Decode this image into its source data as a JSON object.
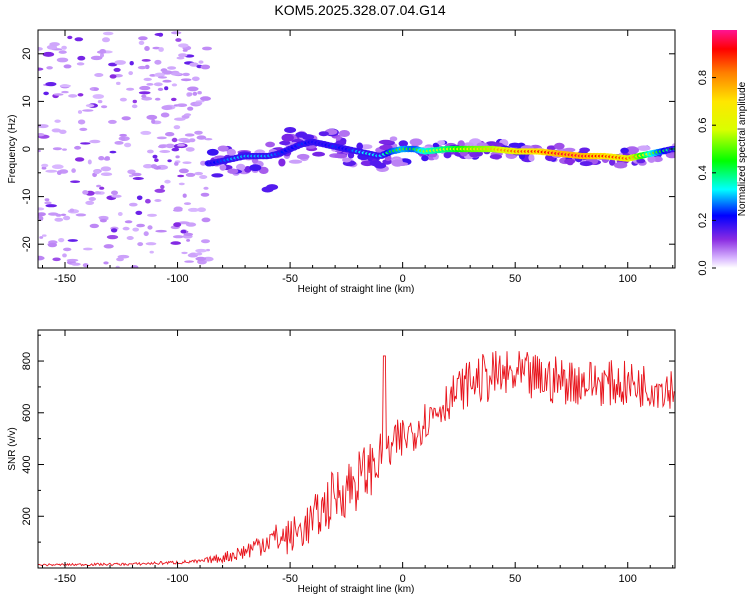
{
  "title": "KOM5.2025.328.07.04.G14",
  "chart_data": [
    {
      "type": "heatmap",
      "title": "KOM5.2025.328.07.04.G14",
      "xlabel": "Height of straight line (km)",
      "ylabel": "Frequency (Hz)",
      "xlim": [
        -162,
        121
      ],
      "ylim": [
        -25,
        25
      ],
      "xticks": [
        -150,
        -100,
        -50,
        0,
        50,
        100
      ],
      "yticks": [
        -20,
        -10,
        0,
        10,
        20
      ],
      "colorbar": {
        "label": "Normalized spectral amplitude",
        "range": [
          0,
          1
        ],
        "ticks": [
          "0.0",
          "0.2",
          "0.4",
          "0.6",
          "0.8"
        ]
      },
      "ridge": {
        "x": [
          -85,
          -80,
          -75,
          -70,
          -65,
          -60,
          -55,
          -50,
          -45,
          -40,
          -35,
          -30,
          -25,
          -20,
          -15,
          -10,
          -5,
          0,
          5,
          10,
          20,
          30,
          40,
          50,
          60,
          70,
          80,
          90,
          100,
          110,
          120
        ],
        "y": [
          -3,
          -2.5,
          -2,
          -1.5,
          -1.5,
          -1.5,
          -1,
          0,
          1,
          1.5,
          1,
          0.5,
          0,
          -0.5,
          -1,
          -1.5,
          -0.5,
          0,
          0,
          -0.5,
          0,
          0,
          0,
          -0.5,
          -0.5,
          -1,
          -1.5,
          -1.5,
          -2,
          -1,
          0
        ],
        "amplitude": [
          0.2,
          0.25,
          0.3,
          0.3,
          0.3,
          0.3,
          0.25,
          0.2,
          0.25,
          0.2,
          0.2,
          0.25,
          0.2,
          0.3,
          0.35,
          0.3,
          0.45,
          0.5,
          0.45,
          0.55,
          0.6,
          0.7,
          0.75,
          0.85,
          0.9,
          0.95,
          0.95,
          0.9,
          0.85,
          0.55,
          0.35
        ]
      }
    },
    {
      "type": "line",
      "xlabel": "Height of straight line (km)",
      "ylabel": "SNR (v/v)",
      "xlim": [
        -162,
        121
      ],
      "ylim": [
        0,
        920
      ],
      "xticks": [
        -150,
        -100,
        -50,
        0,
        50,
        100
      ],
      "yticks": [
        200,
        400,
        600,
        800
      ],
      "color": "#e8141c",
      "envelope": {
        "x": [
          -162,
          -120,
          -90,
          -80,
          -70,
          -60,
          -50,
          -40,
          -30,
          -20,
          -10,
          0,
          10,
          20,
          30,
          40,
          50,
          60,
          80,
          100,
          121
        ],
        "y": [
          12,
          15,
          25,
          40,
          65,
          110,
          120,
          180,
          280,
          340,
          420,
          500,
          570,
          650,
          720,
          740,
          740,
          730,
          720,
          710,
          700
        ]
      },
      "noise_amplitude": [
        4,
        5,
        8,
        20,
        35,
        55,
        70,
        90,
        110,
        120,
        100,
        90,
        80,
        80,
        90,
        100,
        100,
        100,
        90,
        90,
        85
      ],
      "spike": {
        "x": -8,
        "y": 820
      }
    }
  ]
}
